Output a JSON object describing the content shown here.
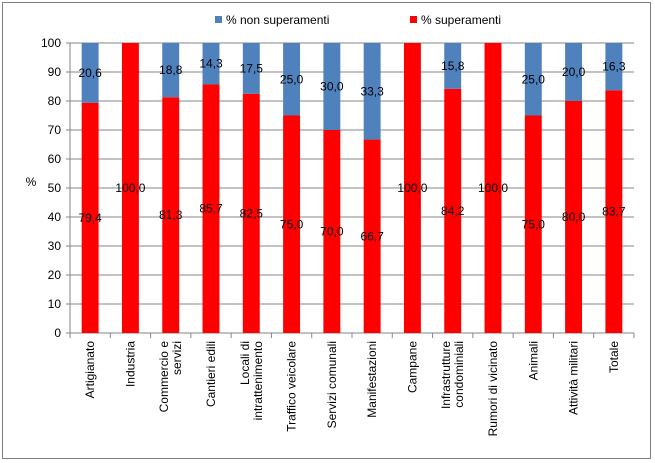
{
  "chart_data": {
    "type": "bar",
    "stacked": true,
    "title": "",
    "xlabel": "",
    "ylabel": "%",
    "ylim": [
      0,
      100
    ],
    "yticks": [
      0,
      10,
      20,
      30,
      40,
      50,
      60,
      70,
      80,
      90,
      100
    ],
    "legend_position": "top",
    "categories": [
      "Artigianato",
      "Industria",
      "Commercio e servizi",
      "Cantieri edili",
      "Locali di intrattenimento",
      "Traffico veicolare",
      "Servizi comunali",
      "Manifestazioni",
      "Campane",
      "Infrastrutture condominiali",
      "Rumori di vicinato",
      "Animali",
      "Attività militari",
      "Totale"
    ],
    "category_lines": [
      [
        "Artigianato"
      ],
      [
        "Industria"
      ],
      [
        "Commercio e",
        "servizi"
      ],
      [
        "Cantieri edili"
      ],
      [
        "Locali di",
        "intrattenimento"
      ],
      [
        "Traffico veicolare"
      ],
      [
        "Servizi comunali"
      ],
      [
        "Manifestazioni"
      ],
      [
        "Campane"
      ],
      [
        "Infrastrutture",
        "condominiali"
      ],
      [
        "Rumori di vicinato"
      ],
      [
        "Animali"
      ],
      [
        "Attività militari"
      ],
      [
        "Totale"
      ]
    ],
    "series": [
      {
        "name": "% superamenti",
        "color": "#ff0000",
        "values": [
          79.4,
          100.0,
          81.3,
          85.7,
          82.5,
          75.0,
          70.0,
          66.7,
          100.0,
          84.2,
          100.0,
          75.0,
          80.0,
          83.7
        ],
        "labels": [
          "79,4",
          "100,0",
          "81,3",
          "85,7",
          "82,5",
          "75,0",
          "70,0",
          "66,7",
          "100,0",
          "84,2",
          "100,0",
          "75,0",
          "80,0",
          "83,7"
        ]
      },
      {
        "name": "% non superamenti",
        "color": "#4f81bd",
        "values": [
          20.6,
          0,
          18.8,
          14.3,
          17.5,
          25.0,
          30.0,
          33.3,
          0,
          15.8,
          0,
          25.0,
          20.0,
          16.3
        ],
        "labels": [
          "20,6",
          "",
          "18,8",
          "14,3",
          "17,5",
          "25,0",
          "30,0",
          "33,3",
          "",
          "15,8",
          "",
          "25,0",
          "20,0",
          "16,3"
        ]
      }
    ],
    "legend": [
      {
        "name": "% non superamenti",
        "color": "#4f81bd"
      },
      {
        "name": "% superamenti",
        "color": "#ff0000"
      }
    ]
  }
}
